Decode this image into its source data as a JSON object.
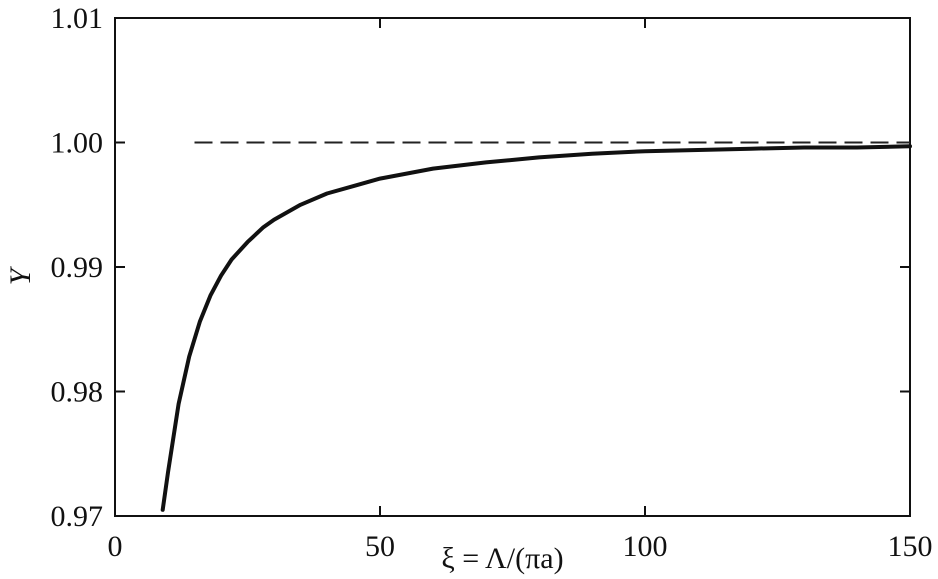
{
  "chart_data": {
    "type": "line",
    "title": "",
    "xlabel": "ξ = Λ/(πa)",
    "ylabel": "Y",
    "xlim": [
      0,
      150
    ],
    "ylim": [
      0.97,
      1.01
    ],
    "x_ticks": [
      "0",
      "50",
      "100",
      "150"
    ],
    "y_ticks": [
      "0.97",
      "0.98",
      "0.99",
      "1.00",
      "1.01"
    ],
    "grid": false,
    "legend": "none",
    "reference_line": {
      "y": 1.0,
      "style": "dashed"
    },
    "series": [
      {
        "x": [
          9,
          10,
          12,
          14,
          16,
          18,
          20,
          22,
          25,
          28,
          30,
          35,
          40,
          45,
          50,
          60,
          70,
          80,
          90,
          100,
          110,
          120,
          130,
          140,
          150
        ],
        "y": [
          0.9705,
          0.9735,
          0.979,
          0.9828,
          0.9856,
          0.9877,
          0.9893,
          0.9906,
          0.992,
          0.9932,
          0.9938,
          0.995,
          0.9959,
          0.9965,
          0.9971,
          0.9979,
          0.9984,
          0.9988,
          0.9991,
          0.9993,
          0.9994,
          0.9995,
          0.9996,
          0.9996,
          0.9997
        ]
      }
    ],
    "colors": {
      "line": "#111111",
      "frame": "#111111",
      "reference": "#222222"
    }
  }
}
